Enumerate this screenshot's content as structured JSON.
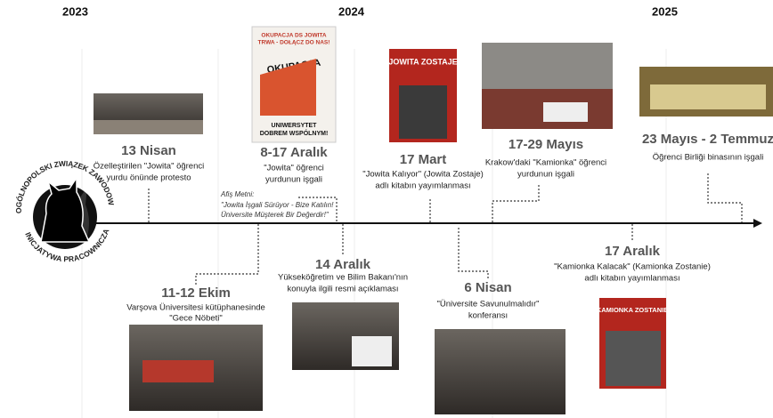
{
  "years": [
    "2023",
    "2024",
    "2025"
  ],
  "logo": {
    "top": "OGÓLNOPOLSKI ZWIĄZEK ZAWODOWY",
    "bottom": "INICJATYWA PRACOWNICZA"
  },
  "poster": {
    "line1": "OKUPACJA DS JOWITA",
    "line2": "TRWA - DOŁĄCZ DO NAS!",
    "line3": "OKUPACJA",
    "line4": "UNIWERSYTET",
    "line5": "DOBREM WSPÓLNYM!"
  },
  "poster_note": [
    "Afiş Metni:",
    "\"Jowita İşgali Sürüyor - Bize Katılın!",
    "Üniversite Müşterek Bir Değerdir!\""
  ],
  "book1": "JOWITA ZOSTAJE",
  "book2": "KAMIONKA ZOSTANIE",
  "events": [
    {
      "date": "13 Nisan",
      "description": [
        "Özelleştirilen \"Jowita\" öğrenci",
        "yurdu önünde protesto"
      ]
    },
    {
      "date": "8-17 Aralık",
      "description": [
        "\"Jowita\" öğrenci",
        "yurdunun işgali"
      ]
    },
    {
      "date": "17 Mart",
      "description": [
        "\"Jowita Kalıyor\" (Jowita Zostaje)",
        "adlı kitabın yayımlanması"
      ]
    },
    {
      "date": "17-29 Mayıs",
      "description": [
        "Krakow'daki \"Kamionka\" öğrenci",
        "yurdunun işgali"
      ]
    },
    {
      "date": "23 Mayıs - 2 Temmuz",
      "description": [
        "Öğrenci Birliği binasının işgali"
      ]
    },
    {
      "date": "11-12 Ekim",
      "description": [
        "Varşova Üniversitesi kütüphanesinde",
        "\"Gece Nöbeti\""
      ]
    },
    {
      "date": "14 Aralık",
      "description": [
        "Yükseköğretim ve Bilim Bakanı'nın",
        "konuyla ilgili resmi açıklaması"
      ]
    },
    {
      "date": "6 Nisan",
      "description": [
        "\"Üniversite Savunulmalıdır\"",
        "konferansı"
      ]
    },
    {
      "date": "17 Aralık",
      "description": [
        "\"Kamionka Kalacak\" (Kamionka Zostanie)",
        "adlı kitabın yayımlanması"
      ]
    }
  ]
}
